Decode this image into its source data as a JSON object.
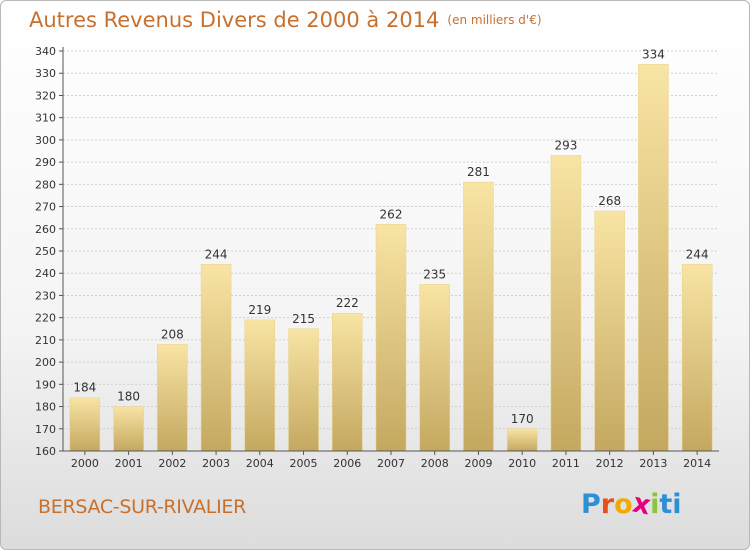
{
  "header": {
    "title": "Autres Revenus Divers de 2000 à 2014",
    "subtitle": "(en milliers d'€)"
  },
  "footer": {
    "place": "BERSAC-SUR-RIVALIER",
    "logo_letters": [
      "P",
      "r",
      "o",
      "x",
      "i",
      "t",
      "i"
    ]
  },
  "chart_data": {
    "type": "bar",
    "title": "Autres Revenus Divers de 2000 à 2014",
    "categories": [
      "2000",
      "2001",
      "2002",
      "2003",
      "2004",
      "2005",
      "2006",
      "2007",
      "2008",
      "2009",
      "2010",
      "2011",
      "2012",
      "2013",
      "2014"
    ],
    "values": [
      184,
      180,
      208,
      244,
      219,
      215,
      222,
      262,
      235,
      281,
      170,
      293,
      268,
      334,
      244
    ],
    "ylim": [
      160,
      340
    ],
    "yticks": [
      160,
      170,
      180,
      190,
      200,
      210,
      220,
      230,
      240,
      250,
      260,
      270,
      280,
      290,
      300,
      310,
      320,
      330,
      340
    ],
    "grid": true,
    "legend": "none",
    "colors": {
      "bar_top": "#f8e4a4",
      "bar_bottom": "#c4a860",
      "text": "#333333"
    }
  }
}
